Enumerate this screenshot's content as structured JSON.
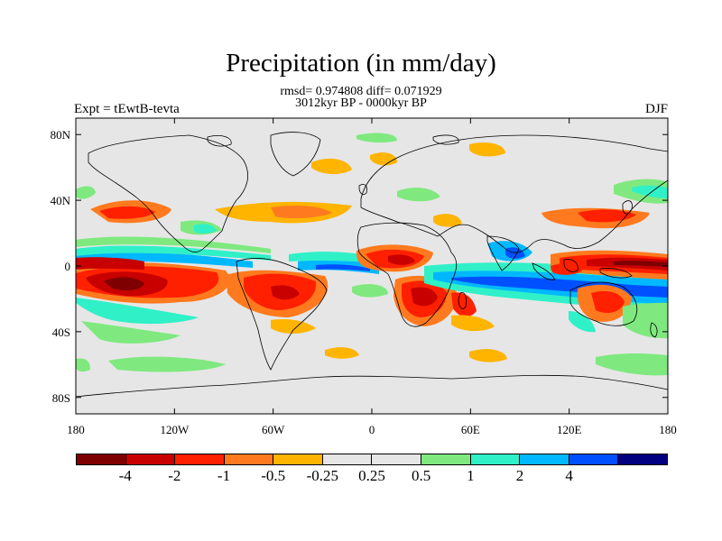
{
  "title": "Precipitation (in mm/day)",
  "stats_line": "rmsd= 0.974808 diff= 0.071929",
  "period_line": "3012kyr BP - 0000kyr BP",
  "experiment_label": "Expt = tEwtB-tevta",
  "season_label": "DJF",
  "map": {
    "background_color": "#e6e6e6",
    "coastline_color": "#000000",
    "lon_ticks": [
      "180",
      "120W",
      "60W",
      "0",
      "60E",
      "120E",
      "180"
    ],
    "lat_ticks": [
      "80N",
      "40N",
      "0",
      "40S",
      "80S"
    ]
  },
  "colorbar": {
    "colors": [
      "#7f0000",
      "#c80000",
      "#ff2000",
      "#ff7a1e",
      "#ffb400",
      "#e6e6e6",
      "#e6e6e6",
      "#7fe97f",
      "#30f0c8",
      "#00b8ff",
      "#0050ff",
      "#000080"
    ],
    "labels": [
      "-4",
      "-2",
      "-1",
      "-0.5",
      "-0.25",
      "0.25",
      "0.5",
      "1",
      "2",
      "4"
    ]
  }
}
